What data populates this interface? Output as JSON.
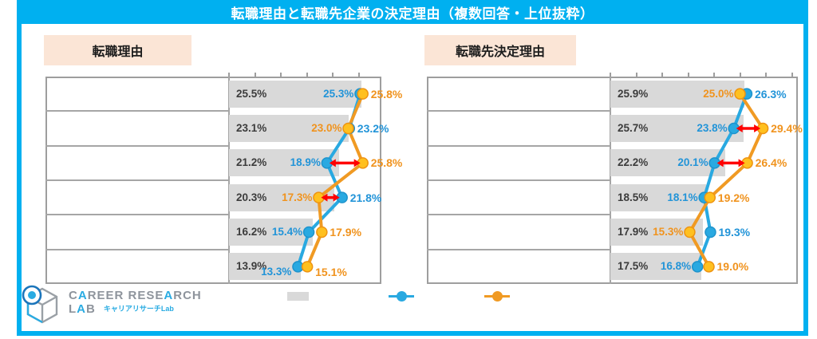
{
  "title": "転職理由と転職先企業の決定理由（複数回答・上位抜粋）",
  "colors": {
    "frame_cyan": "#00B0F0",
    "header_peach": "#FBE5D6",
    "bar_gray": "#D9D9D9",
    "grid_gray": "#A6A6A6",
    "blue_marker": "#29A9E1",
    "blue_text": "#2294D8",
    "orange_line": "#F09A23",
    "orange_fill": "#FFC01F",
    "orange_text": "#F0931E",
    "gap_arrow_red": "#FF0000",
    "overall_text": "#3C3C3C"
  },
  "legend": {
    "items": [
      {
        "name": "overall-bar-swatch",
        "type": "box",
        "color": "#D9D9D9"
      },
      {
        "name": "blue-series-swatch",
        "type": "line-dot",
        "color": "#29A9E1"
      },
      {
        "name": "orange-series-swatch",
        "type": "line-dot",
        "color": "#F09A23"
      }
    ]
  },
  "logo": {
    "line1": "CAREER RESEARCH",
    "line2": "LAB",
    "subtitle": "キャリアリサーチLab"
  },
  "chart_data": [
    {
      "type": "bar",
      "subtype": "bar-with-dumbbell-lines",
      "title": "転職理由",
      "unit": "%",
      "axis": {
        "min": 0,
        "tick_interval": 5,
        "ticks_on_top": true
      },
      "series_note": "gray bar = overall; blue and orange dot-lines = two compared groups (labels redacted in source image)",
      "rows": [
        {
          "overall": 25.5,
          "blue": 25.3,
          "orange": 25.8,
          "gap_arrow": false
        },
        {
          "overall": 23.1,
          "blue": 23.2,
          "orange": 23.0,
          "gap_arrow": false
        },
        {
          "overall": 21.2,
          "blue": 18.9,
          "orange": 25.8,
          "gap_arrow": true
        },
        {
          "overall": 20.3,
          "blue": 21.8,
          "orange": 17.3,
          "gap_arrow": true
        },
        {
          "overall": 16.2,
          "blue": 15.4,
          "orange": 17.9,
          "gap_arrow": false
        },
        {
          "overall": 13.9,
          "blue": 13.3,
          "orange": 15.1,
          "gap_arrow": false
        }
      ]
    },
    {
      "type": "bar",
      "subtype": "bar-with-dumbbell-lines",
      "title": "転職先決定理由",
      "unit": "%",
      "axis": {
        "min": 0,
        "tick_interval": 5,
        "ticks_on_top": true
      },
      "series_note": "gray bar = overall; blue and orange dot-lines = two compared groups (labels redacted in source image)",
      "rows": [
        {
          "overall": 25.9,
          "blue": 26.3,
          "orange": 25.0,
          "gap_arrow": false
        },
        {
          "overall": 25.7,
          "blue": 23.8,
          "orange": 29.4,
          "gap_arrow": true
        },
        {
          "overall": 22.2,
          "blue": 20.1,
          "orange": 26.4,
          "gap_arrow": true
        },
        {
          "overall": 18.5,
          "blue": 18.1,
          "orange": 19.2,
          "gap_arrow": false
        },
        {
          "overall": 17.9,
          "blue": 19.3,
          "orange": 15.3,
          "gap_arrow": false
        },
        {
          "overall": 17.5,
          "blue": 16.8,
          "orange": 19.0,
          "gap_arrow": false
        }
      ]
    }
  ]
}
